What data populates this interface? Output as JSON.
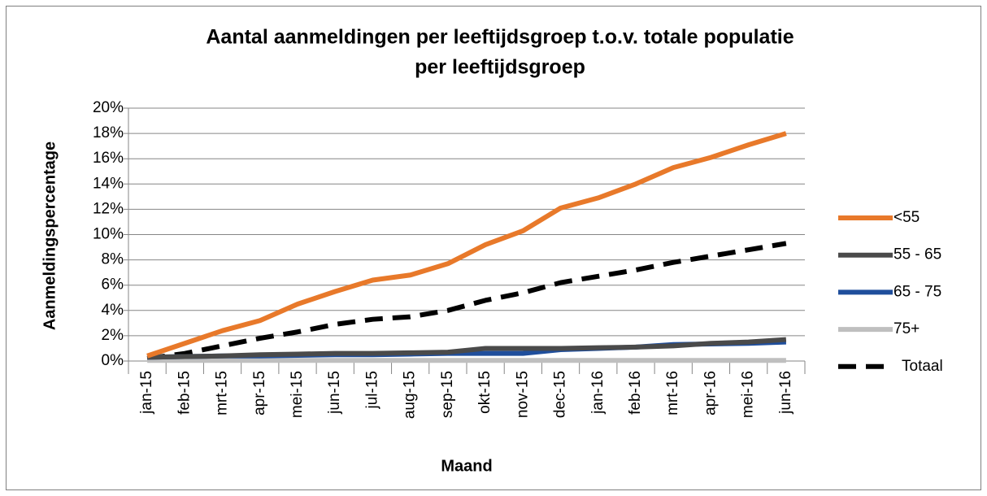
{
  "chart_data": {
    "type": "line",
    "title": [
      "Aantal aanmeldingen per leeftijdsgroep t.o.v. totale populatie",
      "per leeftijdsgroep"
    ],
    "x_label": "Maand",
    "y_label": "Aanmeldingspercentage",
    "categories": [
      "jan-15",
      "feb-15",
      "mrt-15",
      "apr-15",
      "mei-15",
      "jun-15",
      "jul-15",
      "aug-15",
      "sep-15",
      "okt-15",
      "nov-15",
      "dec-15",
      "jan-16",
      "feb-16",
      "mrt-16",
      "apr-16",
      "mei-16",
      "jun-16"
    ],
    "series": [
      {
        "name": "<55",
        "color": "#e8792a",
        "line_style": "solid",
        "values": [
          0.4,
          1.4,
          2.4,
          3.2,
          4.5,
          5.5,
          6.4,
          6.8,
          7.7,
          9.2,
          10.3,
          12.1,
          12.9,
          14.0,
          15.3,
          16.1,
          17.1,
          18.0
        ]
      },
      {
        "name": "55 - 65",
        "color": "#4a4a4a",
        "line_style": "solid",
        "values": [
          0.3,
          0.35,
          0.4,
          0.5,
          0.55,
          0.6,
          0.6,
          0.65,
          0.7,
          1.0,
          1.0,
          1.0,
          1.05,
          1.1,
          1.2,
          1.4,
          1.5,
          1.7
        ]
      },
      {
        "name": "65 - 75",
        "color": "#1f4e9c",
        "line_style": "solid",
        "values": [
          0.3,
          0.35,
          0.4,
          0.4,
          0.45,
          0.5,
          0.5,
          0.55,
          0.6,
          0.6,
          0.6,
          0.9,
          1.0,
          1.1,
          1.3,
          1.35,
          1.4,
          1.5
        ]
      },
      {
        "name": "75+",
        "color": "#bfbfbf",
        "line_style": "solid",
        "values": [
          0.05,
          0.05,
          0.05,
          0.05,
          0.05,
          0.05,
          0.05,
          0.05,
          0.05,
          0.05,
          0.05,
          0.05,
          0.05,
          0.05,
          0.05,
          0.05,
          0.05,
          0.05
        ]
      },
      {
        "name": "Totaal",
        "color": "#000000",
        "line_style": "dashed",
        "values": [
          0.2,
          0.6,
          1.2,
          1.8,
          2.3,
          2.9,
          3.3,
          3.5,
          4.0,
          4.8,
          5.4,
          6.2,
          6.7,
          7.2,
          7.8,
          8.3,
          8.8,
          9.3
        ]
      }
    ],
    "ylim": [
      0,
      20
    ],
    "yticks": [
      {
        "value": 0,
        "label": "0%"
      },
      {
        "value": 2,
        "label": "2%"
      },
      {
        "value": 4,
        "label": "4%"
      },
      {
        "value": 6,
        "label": "6%"
      },
      {
        "value": 8,
        "label": "8%"
      },
      {
        "value": 10,
        "label": "10%"
      },
      {
        "value": 12,
        "label": "12%"
      },
      {
        "value": 14,
        "label": "14%"
      },
      {
        "value": 16,
        "label": "16%"
      },
      {
        "value": 18,
        "label": "18%"
      },
      {
        "value": 20,
        "label": "20%"
      }
    ],
    "grid": true,
    "legend": "right"
  }
}
